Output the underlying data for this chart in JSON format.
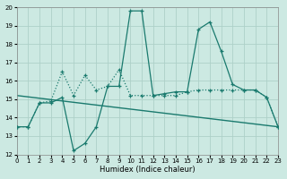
{
  "xlabel": "Humidex (Indice chaleur)",
  "xlim": [
    0,
    23
  ],
  "ylim": [
    12,
    20
  ],
  "xticks": [
    0,
    1,
    2,
    3,
    4,
    5,
    6,
    7,
    8,
    9,
    10,
    11,
    12,
    13,
    14,
    15,
    16,
    17,
    18,
    19,
    20,
    21,
    22,
    23
  ],
  "yticks": [
    12,
    13,
    14,
    15,
    16,
    17,
    18,
    19,
    20
  ],
  "background_color": "#cce9e2",
  "grid_color": "#aed0c8",
  "line_color": "#1a7a6e",
  "line1_x": [
    0,
    1,
    2,
    3,
    4,
    5,
    6,
    7,
    8,
    9,
    10,
    11,
    12,
    13,
    14,
    15,
    16,
    17,
    18,
    19,
    20,
    21,
    22,
    23
  ],
  "line1_y": [
    13.5,
    13.5,
    14.8,
    14.8,
    15.1,
    12.2,
    12.6,
    13.5,
    15.7,
    15.7,
    19.8,
    19.8,
    15.2,
    15.3,
    15.4,
    15.4,
    18.8,
    19.2,
    17.6,
    15.8,
    15.5,
    15.5,
    15.1,
    13.5
  ],
  "line2_x": [
    0,
    1,
    2,
    3,
    4,
    5,
    6,
    7,
    8,
    9,
    10,
    11,
    12,
    13,
    14,
    15,
    16,
    17,
    18,
    19,
    20,
    21,
    22,
    23
  ],
  "line2_y": [
    13.5,
    13.5,
    14.8,
    14.9,
    16.5,
    15.2,
    16.3,
    15.5,
    15.7,
    16.6,
    15.2,
    15.2,
    15.2,
    15.2,
    15.2,
    15.4,
    15.5,
    15.5,
    15.5,
    15.5,
    15.5,
    15.5,
    15.1,
    13.5
  ],
  "line3_x": [
    0,
    23
  ],
  "line3_y": [
    15.2,
    13.5
  ]
}
